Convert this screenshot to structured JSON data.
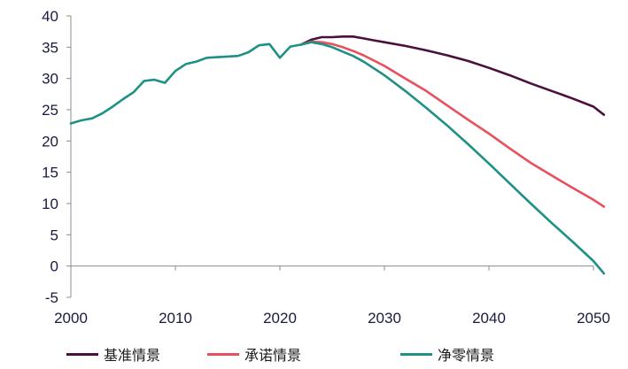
{
  "chart_data": {
    "type": "line",
    "title": "",
    "xlabel": "",
    "ylabel": "",
    "xlim": [
      2000,
      2050
    ],
    "ylim": [
      -5,
      40
    ],
    "x_ticks": [
      "2000",
      "2010",
      "2020",
      "2030",
      "2040",
      "2050"
    ],
    "y_ticks": [
      "40",
      "35",
      "30",
      "25",
      "20",
      "15",
      "10",
      "5",
      "0",
      "-5"
    ],
    "grid": false,
    "legend_position": "bottom",
    "series": [
      {
        "name": "基准情景",
        "color": "#4b0f3c",
        "points": [
          [
            2022,
            35.4
          ],
          [
            2023,
            36.2
          ],
          [
            2024,
            36.6
          ],
          [
            2025,
            36.6
          ],
          [
            2026,
            36.7
          ],
          [
            2027,
            36.7
          ],
          [
            2028,
            36.4
          ],
          [
            2029,
            36.1
          ],
          [
            2030,
            35.8
          ],
          [
            2032,
            35.2
          ],
          [
            2034,
            34.5
          ],
          [
            2036,
            33.7
          ],
          [
            2038,
            32.8
          ],
          [
            2040,
            31.7
          ],
          [
            2042,
            30.5
          ],
          [
            2044,
            29.2
          ],
          [
            2046,
            28.0
          ],
          [
            2048,
            26.8
          ],
          [
            2050,
            25.5
          ],
          [
            2051,
            24.2
          ]
        ]
      },
      {
        "name": "承诺情景",
        "color": "#e8505b",
        "points": [
          [
            2022,
            35.4
          ],
          [
            2023,
            35.9
          ],
          [
            2024,
            35.8
          ],
          [
            2025,
            35.5
          ],
          [
            2026,
            35.0
          ],
          [
            2027,
            34.4
          ],
          [
            2028,
            33.7
          ],
          [
            2030,
            32.0
          ],
          [
            2032,
            30.0
          ],
          [
            2034,
            28.0
          ],
          [
            2036,
            25.7
          ],
          [
            2038,
            23.4
          ],
          [
            2040,
            21.2
          ],
          [
            2042,
            18.8
          ],
          [
            2044,
            16.5
          ],
          [
            2046,
            14.5
          ],
          [
            2048,
            12.5
          ],
          [
            2050,
            10.6
          ],
          [
            2051,
            9.5
          ]
        ]
      },
      {
        "name": "净零情景",
        "color": "#1e9184",
        "points": [
          [
            2000,
            22.8
          ],
          [
            2001,
            23.3
          ],
          [
            2002,
            23.6
          ],
          [
            2003,
            24.4
          ],
          [
            2004,
            25.5
          ],
          [
            2005,
            26.7
          ],
          [
            2006,
            27.8
          ],
          [
            2007,
            29.6
          ],
          [
            2008,
            29.8
          ],
          [
            2009,
            29.3
          ],
          [
            2010,
            31.2
          ],
          [
            2011,
            32.3
          ],
          [
            2012,
            32.7
          ],
          [
            2013,
            33.3
          ],
          [
            2014,
            33.4
          ],
          [
            2015,
            33.5
          ],
          [
            2016,
            33.6
          ],
          [
            2017,
            34.2
          ],
          [
            2018,
            35.3
          ],
          [
            2019,
            35.5
          ],
          [
            2020,
            33.3
          ],
          [
            2021,
            35.1
          ],
          [
            2022,
            35.4
          ],
          [
            2023,
            35.8
          ],
          [
            2024,
            35.5
          ],
          [
            2025,
            35.0
          ],
          [
            2026,
            34.3
          ],
          [
            2027,
            33.6
          ],
          [
            2028,
            32.7
          ],
          [
            2030,
            30.5
          ],
          [
            2032,
            28.0
          ],
          [
            2034,
            25.3
          ],
          [
            2036,
            22.5
          ],
          [
            2038,
            19.5
          ],
          [
            2040,
            16.4
          ],
          [
            2042,
            13.2
          ],
          [
            2044,
            10.0
          ],
          [
            2046,
            6.9
          ],
          [
            2048,
            3.9
          ],
          [
            2050,
            0.8
          ],
          [
            2051,
            -1.2
          ]
        ]
      }
    ]
  }
}
